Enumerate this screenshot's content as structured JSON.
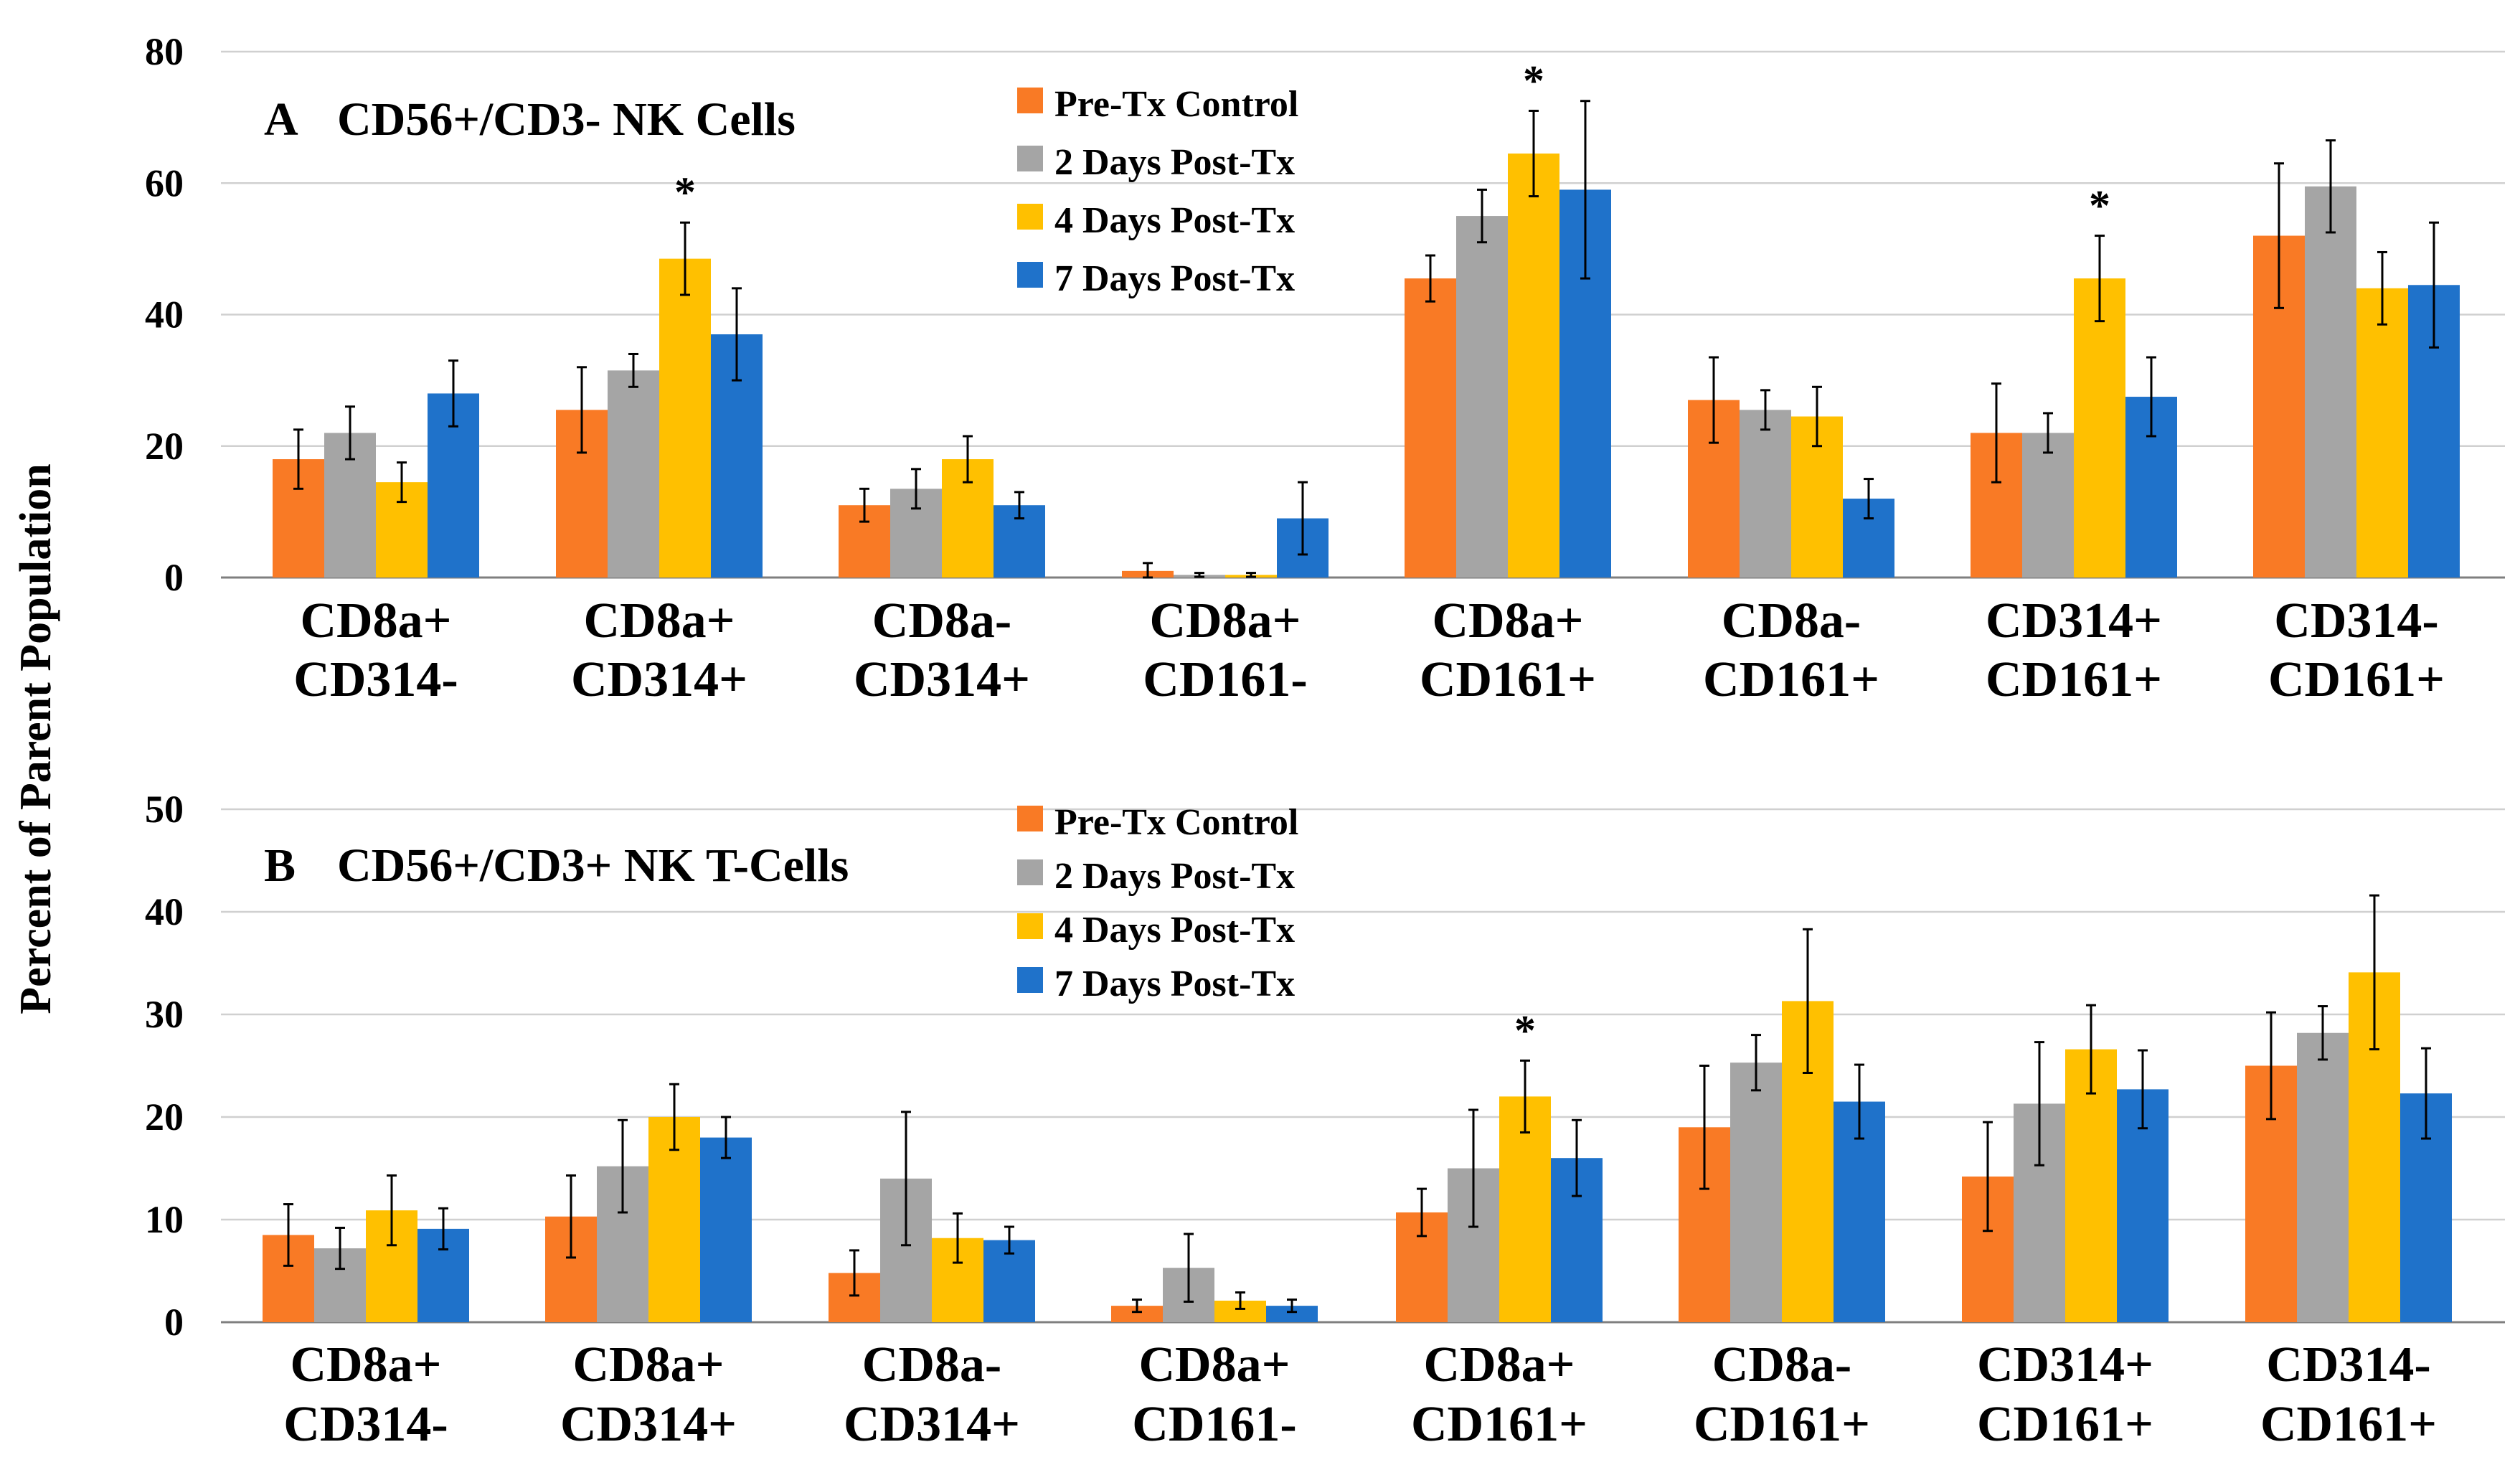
{
  "y_axis_label": "Percent of Parent Population",
  "series_colors": [
    "#F97A25",
    "#A5A5A5",
    "#FFC000",
    "#1F72CA"
  ],
  "chart_data": [
    {
      "type": "bar",
      "panel": "A",
      "title": "CD56+/CD3- NK Cells",
      "ylim": [
        0,
        80
      ],
      "yticks": [
        0,
        20,
        40,
        60,
        80
      ],
      "legend": [
        "Pre-Tx Control",
        "2 Days Post-Tx",
        "4 Days Post-Tx",
        "7 Days Post-Tx"
      ],
      "categories": [
        [
          "CD8a+",
          "CD314-"
        ],
        [
          "CD8a+",
          "CD314+"
        ],
        [
          "CD8a-",
          "CD314+"
        ],
        [
          "CD8a+",
          "CD161-"
        ],
        [
          "CD8a+",
          "CD161+"
        ],
        [
          "CD8a-",
          "CD161+"
        ],
        [
          "CD314+",
          "CD161+"
        ],
        [
          "CD314-",
          "CD161+"
        ]
      ],
      "series": [
        {
          "name": "Pre-Tx Control",
          "values": [
            18,
            25.5,
            11,
            1,
            45.5,
            27,
            22,
            52
          ],
          "errors": [
            4.5,
            6.5,
            2.5,
            1.2,
            3.5,
            6.5,
            7.5,
            11
          ]
        },
        {
          "name": "2 Days Post-Tx",
          "values": [
            22,
            31.5,
            13.5,
            0.4,
            55,
            25.5,
            22,
            59.5
          ],
          "errors": [
            4,
            2.5,
            3,
            0.3,
            4,
            3,
            3,
            7
          ]
        },
        {
          "name": "4 Days Post-Tx",
          "values": [
            14.5,
            48.5,
            18,
            0.4,
            64.5,
            24.5,
            45.5,
            44
          ],
          "errors": [
            3,
            5.5,
            3.5,
            0.3,
            6.5,
            4.5,
            6.5,
            5.5
          ]
        },
        {
          "name": "7 Days Post-Tx",
          "values": [
            28,
            37,
            11,
            9,
            59,
            12,
            27.5,
            44.5
          ],
          "errors": [
            5,
            7,
            2,
            5.5,
            13.5,
            3,
            6,
            9.5
          ]
        }
      ],
      "annotations": [
        {
          "category": 1,
          "series": 2,
          "text": "*"
        },
        {
          "category": 4,
          "series": 2,
          "text": "*"
        },
        {
          "category": 6,
          "series": 2,
          "text": "*"
        }
      ]
    },
    {
      "type": "bar",
      "panel": "B",
      "title": "CD56+/CD3+ NK T-Cells",
      "ylim": [
        0,
        50
      ],
      "yticks": [
        0,
        10,
        20,
        30,
        40,
        50
      ],
      "legend": [
        "Pre-Tx Control",
        "2 Days Post-Tx",
        "4 Days Post-Tx",
        "7 Days Post-Tx"
      ],
      "categories": [
        [
          "CD8a+",
          "CD314-"
        ],
        [
          "CD8a+",
          "CD314+"
        ],
        [
          "CD8a-",
          "CD314+"
        ],
        [
          "CD8a+",
          "CD161-"
        ],
        [
          "CD8a+",
          "CD161+"
        ],
        [
          "CD8a-",
          "CD161+"
        ],
        [
          "CD314+",
          "CD161+"
        ],
        [
          "CD314-",
          "CD161+"
        ]
      ],
      "series": [
        {
          "name": "Pre-Tx Control",
          "values": [
            8.5,
            10.3,
            4.8,
            1.6,
            10.7,
            19,
            14.2,
            25
          ],
          "errors": [
            3,
            4,
            2.2,
            0.6,
            2.3,
            6,
            5.3,
            5.2
          ]
        },
        {
          "name": "2 Days Post-Tx",
          "values": [
            7.2,
            15.2,
            14,
            5.3,
            15,
            25.3,
            21.3,
            28.2
          ],
          "errors": [
            2,
            4.5,
            6.5,
            3.3,
            5.7,
            2.7,
            6,
            2.6
          ]
        },
        {
          "name": "4 Days Post-Tx",
          "values": [
            10.9,
            20,
            8.2,
            2.1,
            22,
            31.3,
            26.6,
            34.1
          ],
          "errors": [
            3.4,
            3.2,
            2.4,
            0.8,
            3.5,
            7,
            4.3,
            7.5
          ]
        },
        {
          "name": "7 Days Post-Tx",
          "values": [
            9.1,
            18,
            8,
            1.6,
            16,
            21.5,
            22.7,
            22.3
          ],
          "errors": [
            2,
            2,
            1.3,
            0.6,
            3.7,
            3.6,
            3.8,
            4.4
          ]
        }
      ],
      "annotations": [
        {
          "category": 4,
          "series": 2,
          "text": "*"
        }
      ]
    }
  ]
}
